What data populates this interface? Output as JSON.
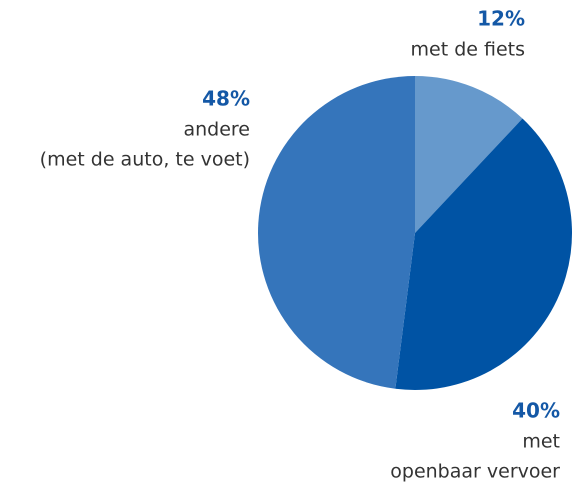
{
  "chart_data": {
    "type": "pie",
    "categories": [
      [
        "met de fiets"
      ],
      [
        "met",
        "openbaar vervoer"
      ],
      [
        "andere",
        "(met de auto, te voet)"
      ]
    ],
    "values": [
      12,
      40,
      48
    ],
    "value_labels": [
      "12%",
      "40%",
      "48%"
    ],
    "colors": [
      "#6699cc",
      "#0053a4",
      "#3575bb"
    ]
  }
}
